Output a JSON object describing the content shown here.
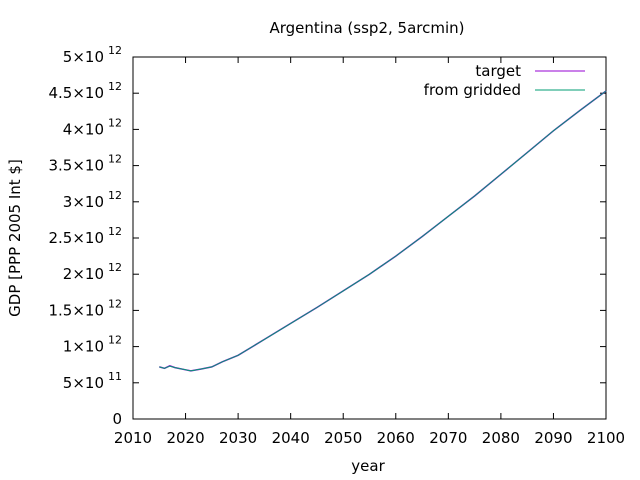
{
  "chart_data": {
    "type": "line",
    "title": "Argentina (ssp2, 5arcmin)",
    "xlabel": "year",
    "ylabel": "GDP [PPP 2005 Int $]",
    "xlim": [
      2010,
      2100
    ],
    "ylim": [
      0,
      5000000000000
    ],
    "x_ticks": [
      2010,
      2020,
      2030,
      2040,
      2050,
      2060,
      2070,
      2080,
      2090,
      2100
    ],
    "y_ticks": [
      {
        "value": 0,
        "mantissa": "0",
        "exp": ""
      },
      {
        "value": 500000000000,
        "mantissa": "5×10",
        "exp": "11"
      },
      {
        "value": 1000000000000,
        "mantissa": "1×10",
        "exp": "12"
      },
      {
        "value": 1500000000000,
        "mantissa": "1.5×10",
        "exp": "12"
      },
      {
        "value": 2000000000000,
        "mantissa": "2×10",
        "exp": "12"
      },
      {
        "value": 2500000000000,
        "mantissa": "2.5×10",
        "exp": "12"
      },
      {
        "value": 3000000000000,
        "mantissa": "3×10",
        "exp": "12"
      },
      {
        "value": 3500000000000,
        "mantissa": "3.5×10",
        "exp": "12"
      },
      {
        "value": 4000000000000,
        "mantissa": "4×10",
        "exp": "12"
      },
      {
        "value": 4500000000000,
        "mantissa": "4.5×10",
        "exp": "12"
      },
      {
        "value": 5000000000000,
        "mantissa": "5×10",
        "exp": "12"
      }
    ],
    "legend_position": "top-right",
    "grid": false,
    "series": [
      {
        "name": "target",
        "color": "#9400d3",
        "x": [
          2015,
          2016,
          2017,
          2018,
          2020,
          2021,
          2023,
          2025,
          2027,
          2030,
          2035,
          2040,
          2045,
          2050,
          2055,
          2060,
          2065,
          2070,
          2075,
          2080,
          2085,
          2090,
          2095,
          2100
        ],
        "y": [
          720000000000,
          700000000000,
          735000000000,
          710000000000,
          680000000000,
          665000000000,
          690000000000,
          720000000000,
          790000000000,
          880000000000,
          1100000000000,
          1320000000000,
          1540000000000,
          1770000000000,
          2000000000000,
          2250000000000,
          2520000000000,
          2800000000000,
          3080000000000,
          3380000000000,
          3680000000000,
          3980000000000,
          4260000000000,
          4530000000000
        ]
      },
      {
        "name": "from gridded",
        "color": "#009e73",
        "x": [
          2015,
          2016,
          2017,
          2018,
          2020,
          2021,
          2023,
          2025,
          2027,
          2030,
          2035,
          2040,
          2045,
          2050,
          2055,
          2060,
          2065,
          2070,
          2075,
          2080,
          2085,
          2090,
          2095,
          2100
        ],
        "y": [
          720000000000,
          700000000000,
          730000000000,
          710000000000,
          680000000000,
          665000000000,
          690000000000,
          720000000000,
          790000000000,
          880000000000,
          1100000000000,
          1320000000000,
          1540000000000,
          1770000000000,
          2000000000000,
          2250000000000,
          2520000000000,
          2800000000000,
          3080000000000,
          3380000000000,
          3680000000000,
          3980000000000,
          4260000000000,
          4530000000000
        ]
      }
    ]
  }
}
